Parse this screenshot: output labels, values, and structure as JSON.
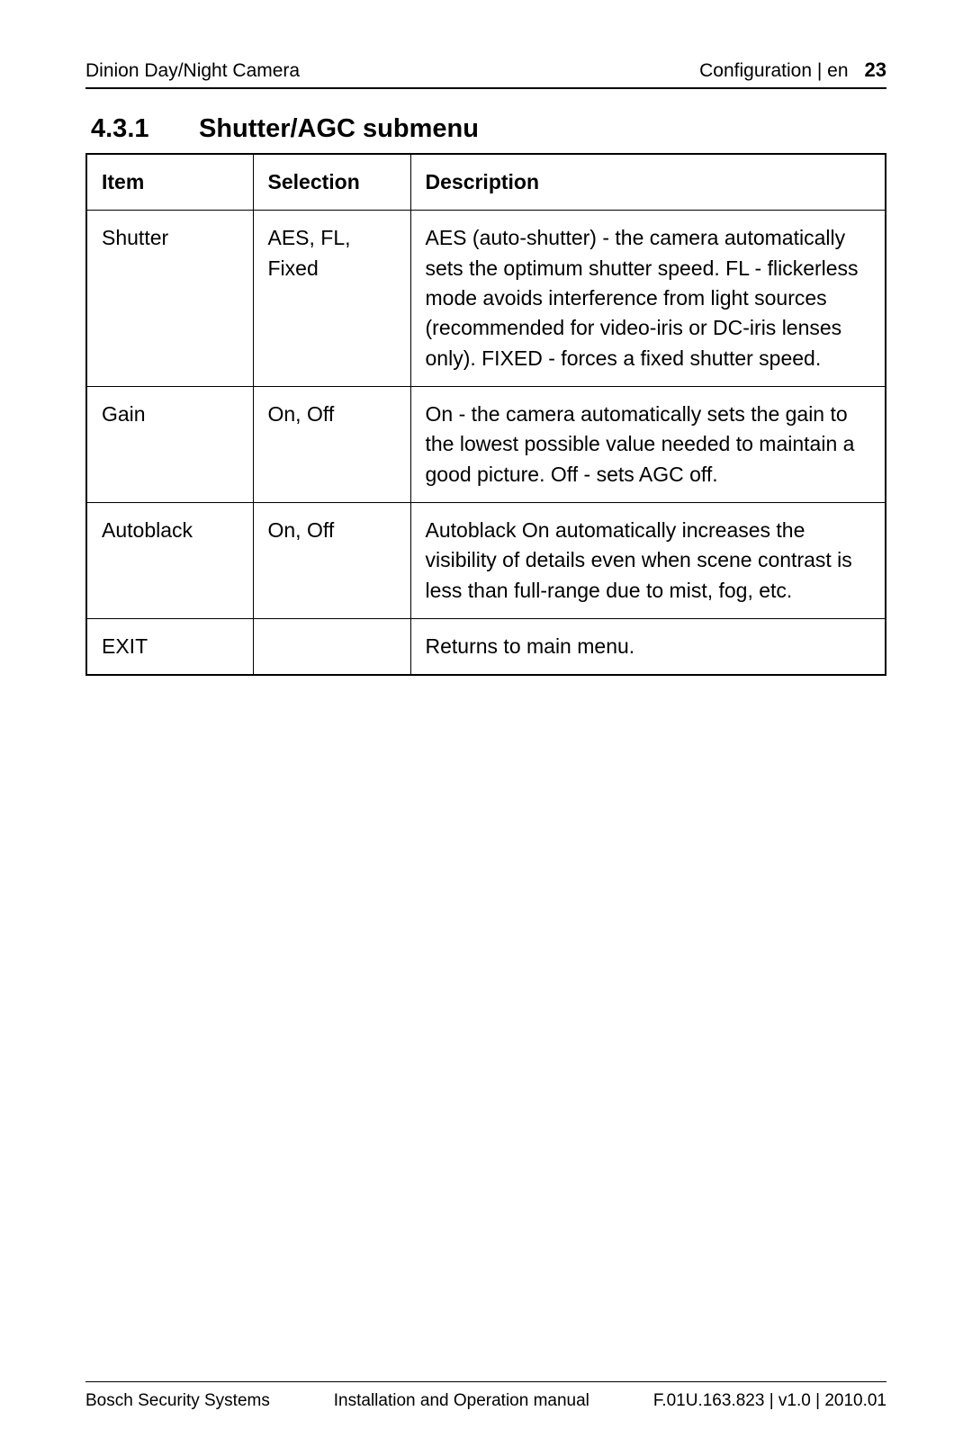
{
  "header": {
    "left": "Dinion Day/Night Camera",
    "section": "Configuration | en",
    "page_number": "23"
  },
  "heading": {
    "number": "4.3.1",
    "title": "Shutter/AGC submenu"
  },
  "table": {
    "columns": [
      "Item",
      "Selection",
      "Description"
    ],
    "rows": [
      {
        "item": "Shutter",
        "selection": "AES, FL, Fixed",
        "description": "AES (auto-shutter) - the camera automatically sets the optimum shutter speed. FL - flickerless mode avoids interference from light sources (recommended for video-iris or DC-iris lenses only). FIXED - forces a fixed shutter speed."
      },
      {
        "item": "Gain",
        "selection": "On, Off",
        "description": "On - the camera automatically sets the gain to the lowest possible value needed to maintain a good picture. Off - sets AGC off."
      },
      {
        "item": "Autoblack",
        "selection": "On, Off",
        "description": "Autoblack On automatically increases the visibility of details even when scene contrast is less than full-range due to mist, fog, etc."
      },
      {
        "item": "EXIT",
        "selection": "",
        "description": "Returns to main menu."
      }
    ]
  },
  "footer": {
    "left": "Bosch Security Systems",
    "center": "Installation and Operation manual",
    "right": "F.01U.163.823 | v1.0 | 2010.01"
  }
}
